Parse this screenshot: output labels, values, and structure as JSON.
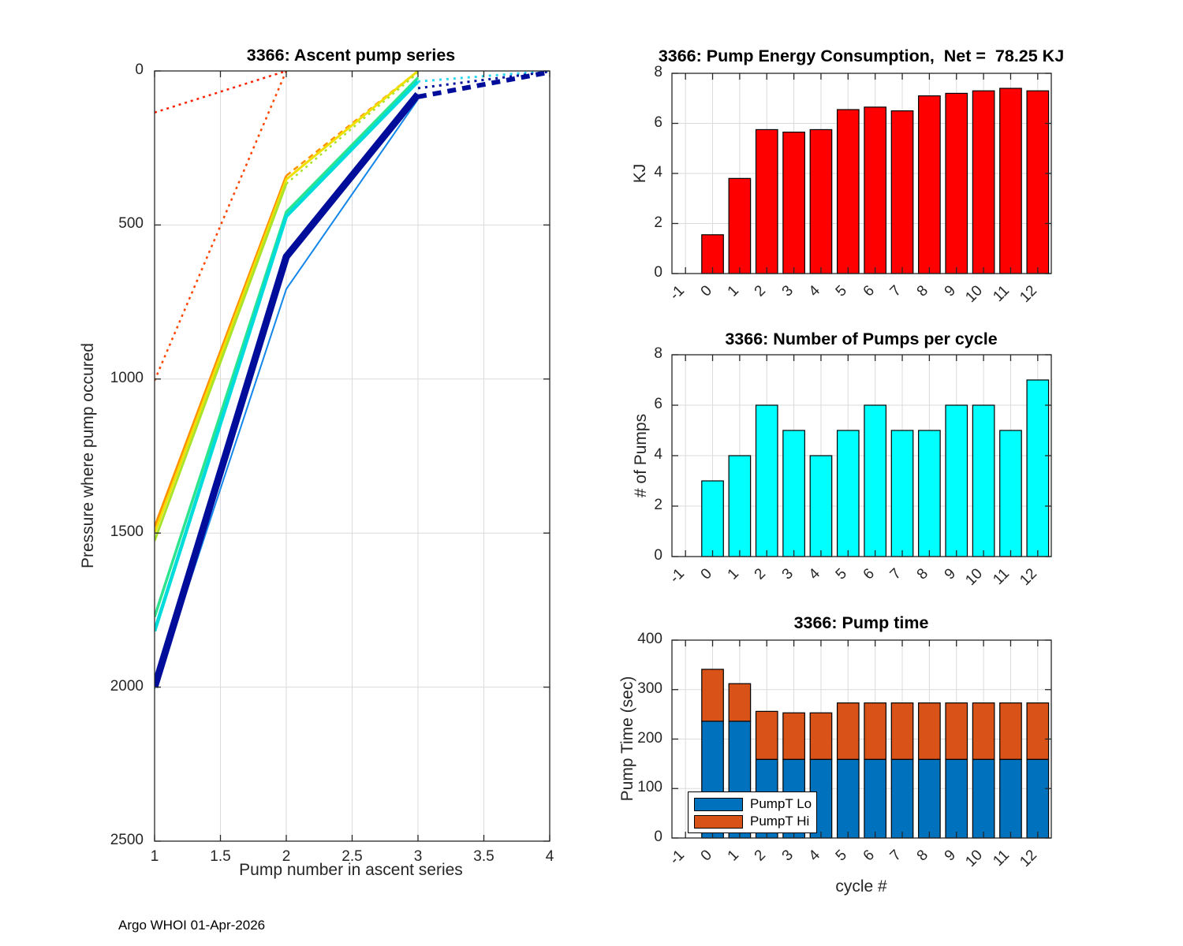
{
  "figure": {
    "footer": "Argo WHOI 01-Apr-2026"
  },
  "chart_data": [
    {
      "id": "ascent",
      "type": "line",
      "title": "3366: Ascent pump series",
      "xlabel": "Pump number in ascent series",
      "ylabel": "Pressure where pump occured",
      "xlim": [
        1,
        4
      ],
      "ylim": [
        0,
        2500
      ],
      "y_inverted": true,
      "grid": true,
      "xticks": [
        1,
        1.5,
        2,
        2.5,
        3,
        3.5,
        4
      ],
      "yticks": [
        0,
        500,
        1000,
        1500,
        2000,
        2500
      ],
      "series": [
        {
          "name": "red-dotted-shallow",
          "color": "#ff1e00",
          "width": 2.5,
          "dash": "3 5",
          "points": [
            [
              1,
              135
            ],
            [
              2,
              0
            ]
          ]
        },
        {
          "name": "red-dotted-deep",
          "color": "#ff4400",
          "width": 2.5,
          "dash": "3 5",
          "points": [
            [
              1,
              1005
            ],
            [
              2,
              0
            ]
          ]
        },
        {
          "name": "orange-solid",
          "color": "#ff9100",
          "width": 3,
          "dash": null,
          "points": [
            [
              1,
              1480
            ],
            [
              2,
              340
            ]
          ]
        },
        {
          "name": "orange-dotted",
          "color": "#ff9100",
          "width": 2.5,
          "dash": "7 5",
          "points": [
            [
              2,
              340
            ],
            [
              3,
              0
            ]
          ]
        },
        {
          "name": "yellow-solid",
          "color": "#f0e000",
          "width": 3,
          "dash": null,
          "points": [
            [
              1,
              1500
            ],
            [
              2,
              352
            ],
            [
              3,
              0
            ]
          ]
        },
        {
          "name": "chartreuse-solid",
          "color": "#a9e32b",
          "width": 3,
          "dash": null,
          "points": [
            [
              1,
              1525
            ],
            [
              2,
              366
            ]
          ]
        },
        {
          "name": "chartreuse-dotted",
          "color": "#a9e32b",
          "width": 2.5,
          "dash": "3 5",
          "points": [
            [
              2,
              366
            ],
            [
              3,
              6
            ]
          ]
        },
        {
          "name": "springgreen-solid",
          "color": "#2de48e",
          "width": 3.5,
          "dash": null,
          "points": [
            [
              1,
              1772
            ],
            [
              2,
              458
            ],
            [
              3,
              22
            ]
          ]
        },
        {
          "name": "cyan-solid",
          "color": "#00dcdc",
          "width": 4.5,
          "dash": null,
          "points": [
            [
              1,
              1818
            ],
            [
              2,
              472
            ],
            [
              3,
              34
            ]
          ]
        },
        {
          "name": "cyan-dotted",
          "color": "#2cd9f0",
          "width": 3,
          "dash": "3 6",
          "points": [
            [
              3,
              34
            ],
            [
              4,
              0
            ]
          ]
        },
        {
          "name": "blue-thin-solid",
          "color": "#1286ea",
          "width": 2,
          "dash": null,
          "points": [
            [
              1,
              2005
            ],
            [
              2,
              708
            ],
            [
              3,
              92
            ]
          ]
        },
        {
          "name": "navy-thick-solid",
          "color": "#000d9a",
          "width": 9,
          "dash": null,
          "points": [
            [
              1,
              2000
            ],
            [
              2,
              603
            ],
            [
              3,
              76
            ]
          ]
        },
        {
          "name": "navy-dotted",
          "color": "#000d9a",
          "width": 3,
          "dash": "3 6",
          "points": [
            [
              3,
              56
            ],
            [
              4,
              2
            ]
          ]
        },
        {
          "name": "navy-dashed",
          "color": "#000d9a",
          "width": 6,
          "dash": "11 8",
          "points": [
            [
              3,
              84
            ],
            [
              4,
              4
            ]
          ]
        }
      ]
    },
    {
      "id": "energy",
      "type": "bar",
      "title": "3366: Pump Energy Consumption,  Net =  78.25 KJ",
      "net_kj": 78.25,
      "ylabel": "KJ",
      "ylim": [
        0,
        8
      ],
      "yticks": [
        0,
        2,
        4,
        6,
        8
      ],
      "grid": true,
      "bar_color": "#ff0000",
      "bar_edge": "#000000",
      "categories": [
        "-1",
        "0",
        "1",
        "2",
        "3",
        "4",
        "5",
        "6",
        "7",
        "8",
        "9",
        "10",
        "11",
        "12"
      ],
      "values": [
        null,
        1.55,
        3.8,
        5.75,
        5.65,
        5.75,
        6.55,
        6.65,
        6.5,
        7.1,
        7.2,
        7.3,
        7.4,
        7.3
      ]
    },
    {
      "id": "pumps",
      "type": "bar",
      "title": "3366: Number of Pumps per cycle",
      "ylabel": "# of Pumps",
      "ylim": [
        0,
        8
      ],
      "yticks": [
        0,
        2,
        4,
        6,
        8
      ],
      "grid": true,
      "bar_color": "#00ffff",
      "bar_edge": "#000000",
      "categories": [
        "-1",
        "0",
        "1",
        "2",
        "3",
        "4",
        "5",
        "6",
        "7",
        "8",
        "9",
        "10",
        "11",
        "12"
      ],
      "values": [
        null,
        3,
        4,
        6,
        5,
        4,
        5,
        6,
        5,
        5,
        6,
        6,
        5,
        7
      ]
    },
    {
      "id": "time",
      "type": "stacked-bar",
      "title": "3366: Pump time",
      "xlabel": "cycle #",
      "ylabel": "Pump Time (sec)",
      "ylim": [
        0,
        400
      ],
      "yticks": [
        0,
        100,
        200,
        300,
        400
      ],
      "grid": true,
      "bar_edge": "#000000",
      "categories": [
        "-1",
        "0",
        "1",
        "2",
        "3",
        "4",
        "5",
        "6",
        "7",
        "8",
        "9",
        "10",
        "11",
        "12"
      ],
      "series": [
        {
          "name": "PumpT Lo",
          "color": "#0072bd",
          "values": [
            null,
            236,
            236,
            159,
            159,
            159,
            159,
            159,
            159,
            159,
            159,
            159,
            159,
            159
          ]
        },
        {
          "name": "PumpT Hi",
          "color": "#d95319",
          "values": [
            null,
            105,
            76,
            97,
            94,
            94,
            114,
            114,
            114,
            114,
            114,
            114,
            114,
            114
          ]
        }
      ],
      "legend": {
        "position": "southwest",
        "labels": [
          "PumpT Lo",
          "PumpT Hi"
        ]
      }
    }
  ]
}
